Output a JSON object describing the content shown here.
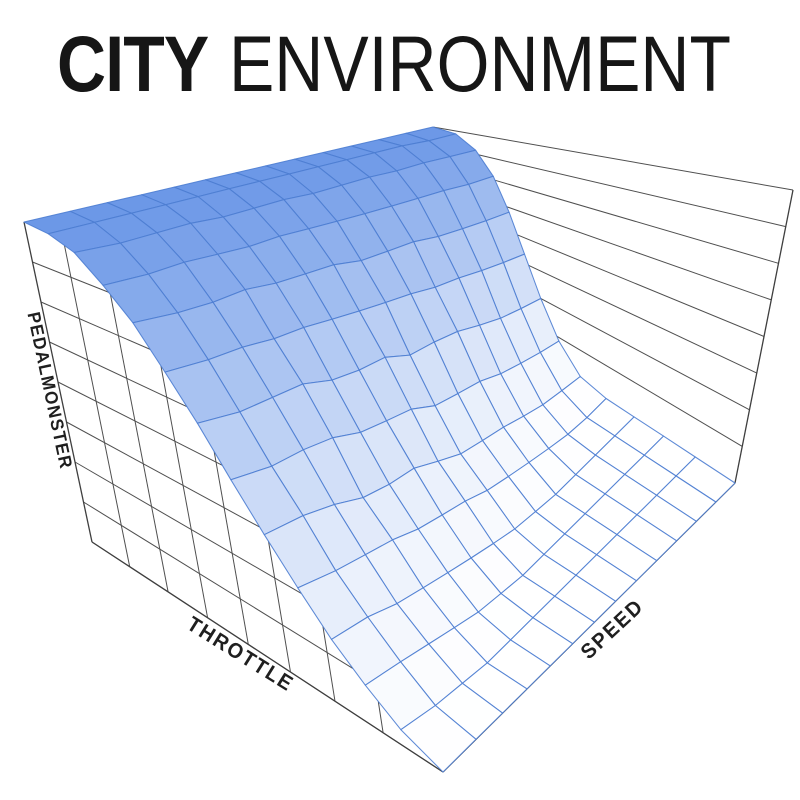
{
  "title": {
    "emphasis": "CITY",
    "rest": "ENVIRONMENT"
  },
  "axes": {
    "z_label": "PEDALMONSTER",
    "x_label": "THROTTLE",
    "y_label": "SPEED"
  },
  "colors": {
    "background": "#ffffff",
    "title_color": "#161616",
    "label_color": "#1f1f1f",
    "wall_line": "#4f4f4f",
    "axis_edge": "#3f3f3f",
    "mesh_line": "#4d7dd2",
    "surface_low": "#ffffff",
    "surface_high": "#6b97e7"
  },
  "chart_data": {
    "type": "surface",
    "projection": "3d",
    "title": "CITY ENVIRONMENT",
    "xlabel": "THROTTLE",
    "ylabel": "SPEED",
    "zlabel": "PEDALMONSTER",
    "x_range": [
      0,
      1
    ],
    "y_range": [
      0,
      1
    ],
    "z_range": [
      0,
      1
    ],
    "mesh_divisions": 13,
    "wall_divisions": 8,
    "grid": "walls-only",
    "legend": "none",
    "surface_z": [
      [
        0,
        0,
        0,
        0,
        0,
        0,
        0,
        0,
        0,
        0,
        0,
        0,
        0,
        0
      ],
      [
        0.04,
        0.02,
        0.01,
        0,
        0,
        0,
        0,
        0,
        0,
        0,
        0,
        0,
        0,
        0
      ],
      [
        0.1,
        0.08,
        0.06,
        0.04,
        0.02,
        0.01,
        0,
        0,
        0,
        0,
        0,
        0,
        0,
        0
      ],
      [
        0.17,
        0.15,
        0.12,
        0.1,
        0.08,
        0.06,
        0.04,
        0.02,
        0.01,
        0,
        0,
        0,
        0,
        0
      ],
      [
        0.26,
        0.23,
        0.21,
        0.19,
        0.16,
        0.14,
        0.12,
        0.09,
        0.07,
        0.05,
        0.03,
        0.01,
        0,
        0
      ],
      [
        0.36,
        0.34,
        0.31,
        0.27,
        0.25,
        0.24,
        0.2,
        0.16,
        0.14,
        0.12,
        0.09,
        0.06,
        0.04,
        0.02
      ],
      [
        0.47,
        0.44,
        0.43,
        0.41,
        0.37,
        0.35,
        0.33,
        0.28,
        0.26,
        0.24,
        0.2,
        0.17,
        0.14,
        0.11
      ],
      [
        0.59,
        0.56,
        0.55,
        0.54,
        0.5,
        0.48,
        0.47,
        0.42,
        0.41,
        0.39,
        0.35,
        0.31,
        0.28,
        0.25
      ],
      [
        0.7,
        0.68,
        0.67,
        0.65,
        0.64,
        0.62,
        0.6,
        0.58,
        0.56,
        0.53,
        0.51,
        0.48,
        0.45,
        0.42
      ],
      [
        0.81,
        0.79,
        0.78,
        0.78,
        0.76,
        0.75,
        0.74,
        0.71,
        0.7,
        0.69,
        0.66,
        0.64,
        0.62,
        0.6
      ],
      [
        0.89,
        0.88,
        0.88,
        0.87,
        0.86,
        0.86,
        0.85,
        0.84,
        0.83,
        0.82,
        0.81,
        0.8,
        0.78,
        0.77
      ],
      [
        0.96,
        0.95,
        0.95,
        0.95,
        0.94,
        0.94,
        0.94,
        0.93,
        0.93,
        0.93,
        0.92,
        0.92,
        0.91,
        0.9
      ],
      [
        0.99,
        0.99,
        0.99,
        0.99,
        0.99,
        0.99,
        0.99,
        0.99,
        0.99,
        0.99,
        0.99,
        0.99,
        0.98,
        0.98
      ],
      [
        1,
        1,
        1,
        1,
        1,
        1,
        1,
        1,
        1,
        1,
        1,
        1,
        1,
        1
      ]
    ]
  }
}
